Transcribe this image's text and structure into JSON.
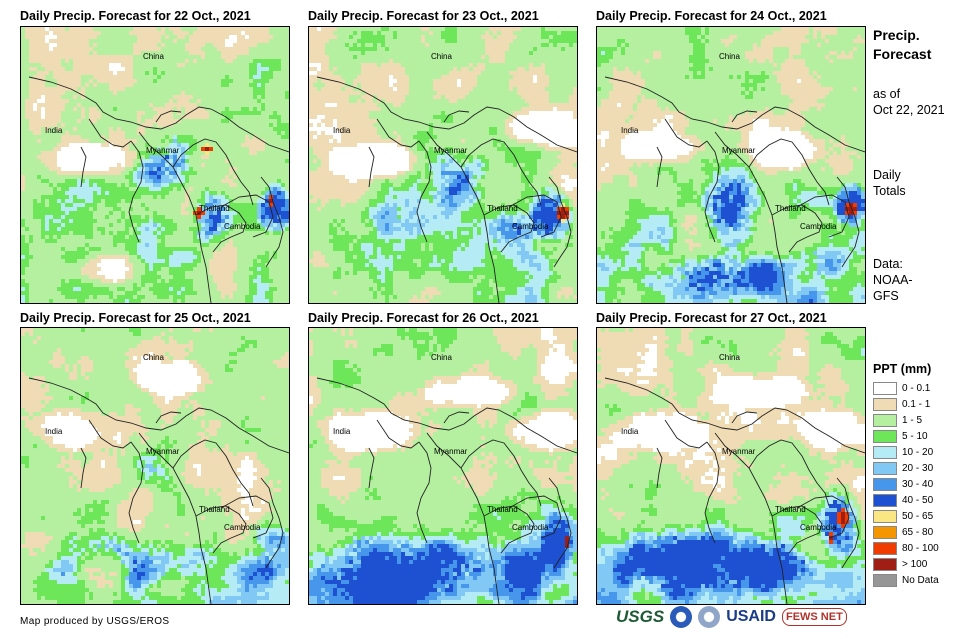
{
  "panels": [
    {
      "title": "Daily Precip. Forecast for 22 Oct., 2021",
      "scenario": "d22"
    },
    {
      "title": "Daily Precip. Forecast for 23 Oct., 2021",
      "scenario": "d23"
    },
    {
      "title": "Daily Precip. Forecast for 24 Oct., 2021",
      "scenario": "d24"
    },
    {
      "title": "Daily Precip. Forecast for 25 Oct., 2021",
      "scenario": "d25"
    },
    {
      "title": "Daily Precip. Forecast for 26 Oct., 2021",
      "scenario": "d26"
    },
    {
      "title": "Daily Precip. Forecast for 27 Oct., 2021",
      "scenario": "d27"
    }
  ],
  "map_labels": {
    "china": "China",
    "india": "India",
    "myanmar": "Myanmar",
    "thailand": "Thailand",
    "cambodia": "Cambodia"
  },
  "side": {
    "title_line1": "Precip.",
    "title_line2": "Forecast",
    "asof_line1": "as of",
    "asof_line2": "Oct 22, 2021",
    "daily_line1": "Daily",
    "daily_line2": "Totals",
    "data_line1": "Data:",
    "data_line2": "NOAA-",
    "data_line3": "GFS"
  },
  "legend": {
    "title": "PPT (mm)",
    "items": [
      {
        "label": "0 - 0.1",
        "color": "#ffffff"
      },
      {
        "label": "0.1 - 1",
        "color": "#f0dcb4"
      },
      {
        "label": "1 - 5",
        "color": "#b4f0a0"
      },
      {
        "label": "5 - 10",
        "color": "#6ee65a"
      },
      {
        "label": "10 - 20",
        "color": "#b4ebf5"
      },
      {
        "label": "20 - 30",
        "color": "#82c8f5"
      },
      {
        "label": "30 - 40",
        "color": "#4696eb"
      },
      {
        "label": "40 - 50",
        "color": "#1e50d2"
      },
      {
        "label": "50 - 65",
        "color": "#fae682"
      },
      {
        "label": "65 - 80",
        "color": "#f59600"
      },
      {
        "label": "80 - 100",
        "color": "#f03c00"
      },
      {
        "label": "> 100",
        "color": "#a01e14"
      },
      {
        "label": "No Data",
        "color": "#969696"
      }
    ]
  },
  "credit": "Map produced by USGS/EROS",
  "logos": {
    "usgs": "USGS",
    "usaid": "USAID",
    "fews": "FEWS NET"
  }
}
